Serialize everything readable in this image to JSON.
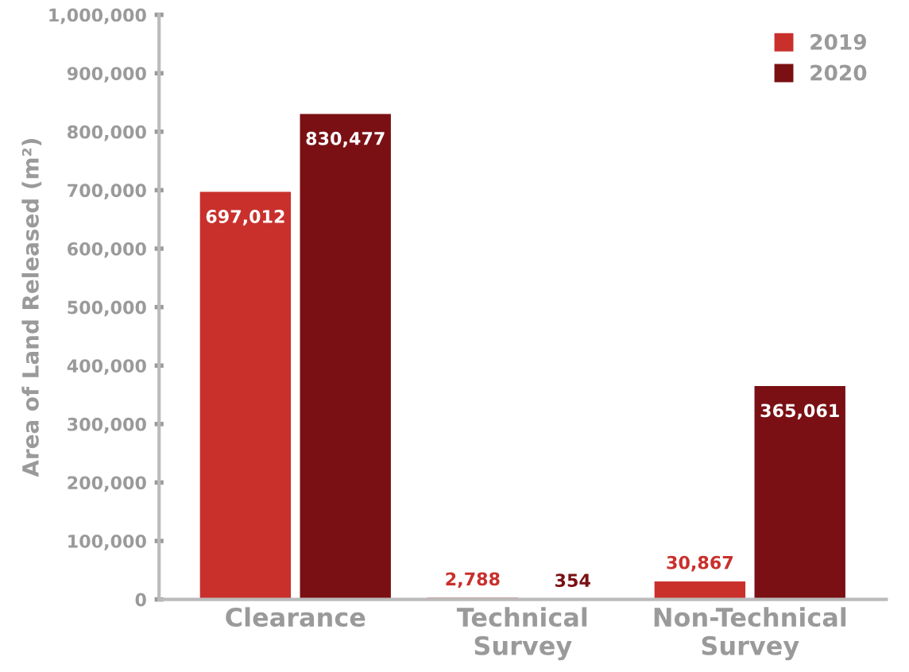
{
  "chart_data": {
    "type": "bar",
    "ylabel": "Area of Land Released (m²)",
    "categories": [
      "Clearance",
      "Technical\nSurvey",
      "Non-Technical\nSurvey"
    ],
    "series": [
      {
        "name": "2019",
        "color": "#c9302c",
        "values": [
          697012,
          2788,
          30867
        ],
        "value_labels": [
          "697,012",
          "2,788",
          "30,867"
        ]
      },
      {
        "name": "2020",
        "color": "#7a1014",
        "values": [
          830477,
          354,
          365061
        ],
        "value_labels": [
          "830,477",
          "354",
          "365,061"
        ]
      }
    ],
    "ylim": [
      0,
      1000000
    ],
    "yticks": [
      0,
      {
        "value": 100000,
        "label": "100,000"
      },
      {
        "value": 200000,
        "label": "200,000"
      },
      {
        "value": 300000,
        "label": "300,000"
      },
      {
        "value": 400000,
        "label": "400,000"
      },
      {
        "value": 500000,
        "label": "500,000"
      },
      {
        "value": 600000,
        "label": "600,000"
      },
      {
        "value": 700000,
        "label": "700,000"
      },
      {
        "value": 800000,
        "label": "800,000"
      },
      {
        "value": 900000,
        "label": "900,000"
      },
      {
        "value": 1000000,
        "label": "1,000,000"
      }
    ],
    "grid": false,
    "legend": "top right"
  }
}
